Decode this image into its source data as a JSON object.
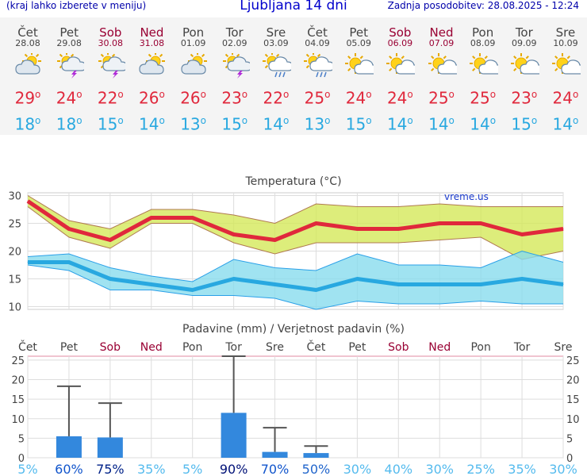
{
  "header": {
    "menu_note": "(kraj lahko izberete v meniju)",
    "title": "Ljubljana 14 dni",
    "updated": "Zadnja posodobitev: 28.08.2025 - 12:24"
  },
  "colors": {
    "max": "#e0283c",
    "min": "#28a8e0",
    "weekend": "#990033",
    "precip_bar": "#3388dd"
  },
  "days": [
    {
      "name": "Čet",
      "date": "28.08",
      "weekend": false,
      "icon": "partly-cloudy-icon",
      "max": "29",
      "min": "18"
    },
    {
      "name": "Pet",
      "date": "29.08",
      "weekend": false,
      "icon": "thunderstorm-sun-icon",
      "max": "24",
      "min": "18"
    },
    {
      "name": "Sob",
      "date": "30.08",
      "weekend": true,
      "icon": "thunderstorm-sun-icon",
      "max": "22",
      "min": "15"
    },
    {
      "name": "Ned",
      "date": "31.08",
      "weekend": true,
      "icon": "partly-cloudy-icon",
      "max": "26",
      "min": "14"
    },
    {
      "name": "Pon",
      "date": "01.09",
      "weekend": false,
      "icon": "partly-cloudy-icon",
      "max": "26",
      "min": "13"
    },
    {
      "name": "Tor",
      "date": "02.09",
      "weekend": false,
      "icon": "thunderstorm-sun-icon",
      "max": "23",
      "min": "15"
    },
    {
      "name": "Sre",
      "date": "03.09",
      "weekend": false,
      "icon": "rain-sun-icon",
      "max": "22",
      "min": "14"
    },
    {
      "name": "Čet",
      "date": "04.09",
      "weekend": false,
      "icon": "rain-sun-icon",
      "max": "25",
      "min": "13"
    },
    {
      "name": "Pet",
      "date": "05.09",
      "weekend": false,
      "icon": "partly-sunny-icon",
      "max": "24",
      "min": "15"
    },
    {
      "name": "Sob",
      "date": "06.09",
      "weekend": true,
      "icon": "partly-sunny-icon",
      "max": "24",
      "min": "14"
    },
    {
      "name": "Ned",
      "date": "07.09",
      "weekend": true,
      "icon": "partly-sunny-icon",
      "max": "25",
      "min": "14"
    },
    {
      "name": "Pon",
      "date": "08.09",
      "weekend": false,
      "icon": "partly-sunny-icon",
      "max": "25",
      "min": "14"
    },
    {
      "name": "Tor",
      "date": "09.09",
      "weekend": false,
      "icon": "partly-sunny-icon",
      "max": "23",
      "min": "15"
    },
    {
      "name": "Sre",
      "date": "10.09",
      "weekend": false,
      "icon": "partly-sunny-icon",
      "max": "24",
      "min": "14"
    }
  ],
  "chart_data": [
    {
      "type": "line",
      "title": "Temperatura (°C)",
      "watermark": "vreme.us",
      "ylim": [
        9.5,
        30.5
      ],
      "yticks": [
        10,
        15,
        20,
        25,
        30
      ],
      "grid": true,
      "series": [
        {
          "key": "max",
          "values": [
            29,
            24,
            22,
            26,
            26,
            23,
            22,
            25,
            24,
            24,
            25,
            25,
            23,
            24
          ],
          "band_low": [
            28,
            22.5,
            20.5,
            25,
            25,
            21.5,
            19.5,
            21.5,
            21.5,
            21.5,
            22,
            22.5,
            18.5,
            20
          ],
          "band_high": [
            30,
            25.5,
            24,
            27.5,
            27.5,
            26.5,
            25,
            28.5,
            28,
            28,
            28.5,
            28,
            28,
            28
          ]
        },
        {
          "key": "min",
          "values": [
            18,
            18,
            15,
            14,
            13,
            15,
            14,
            13,
            15,
            14,
            14,
            14,
            15,
            14
          ],
          "band_low": [
            17.5,
            16.5,
            13,
            13,
            12,
            12,
            11.5,
            9.5,
            11,
            10.5,
            10.5,
            11,
            10.5,
            10.5
          ],
          "band_high": [
            19,
            19.5,
            17,
            15.5,
            14.5,
            18.5,
            17,
            16.5,
            19.5,
            17.5,
            17.5,
            17,
            20,
            18
          ]
        }
      ]
    },
    {
      "type": "bar",
      "title": "Padavine (mm) / Verjetnost padavin (%)",
      "ylim": [
        0,
        26
      ],
      "yticks": [
        0,
        5,
        10,
        15,
        20,
        25
      ],
      "categories": [
        "Čet",
        "Pet",
        "Sob",
        "Ned",
        "Pon",
        "Tor",
        "Sre",
        "Čet",
        "Pet",
        "Sob",
        "Ned",
        "Pon",
        "Tor",
        "Sre"
      ],
      "weekend": [
        false,
        false,
        true,
        true,
        false,
        false,
        false,
        false,
        false,
        true,
        true,
        false,
        false,
        false
      ],
      "values": [
        0,
        5.5,
        5.2,
        0,
        0,
        11.5,
        1.5,
        1.2,
        0,
        0,
        0,
        0,
        0,
        0
      ],
      "error_max": [
        0,
        18.3,
        14,
        0,
        0,
        26,
        7.7,
        3,
        0,
        0,
        0,
        0,
        0,
        0
      ],
      "probability": [
        "5%",
        "60%",
        "75%",
        "35%",
        "5%",
        "90%",
        "70%",
        "50%",
        "30%",
        "40%",
        "30%",
        "25%",
        "35%",
        "30%"
      ],
      "probability_colors": [
        "#55bbee",
        "#1155cc",
        "#002288",
        "#55bbee",
        "#55bbee",
        "#001177",
        "#1155cc",
        "#2266cc",
        "#55bbee",
        "#55bbee",
        "#55bbee",
        "#55bbee",
        "#55bbee",
        "#55bbee"
      ]
    }
  ]
}
